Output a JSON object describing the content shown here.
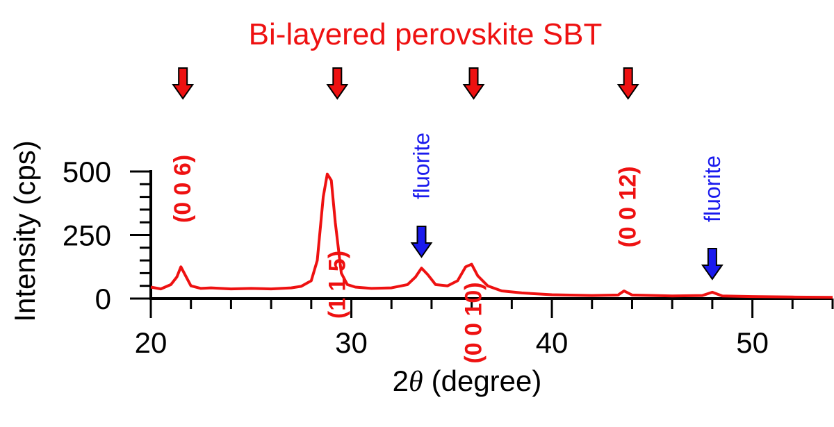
{
  "chart_data": {
    "type": "line",
    "title": "Bi-layered perovskite SBT",
    "xlabel": "(degree)",
    "xlabel_prefix": "2",
    "xlabel_symbol": "θ",
    "ylabel": "Intensity (cps)",
    "xlim": [
      20,
      54
    ],
    "ylim": [
      0,
      500
    ],
    "x_ticks": [
      20,
      30,
      40,
      50
    ],
    "x_minor_step": 2,
    "y_ticks": [
      0,
      250,
      500
    ],
    "y_minor_step": 50,
    "grid": false,
    "series": [
      {
        "color": "#ee1111",
        "x": [
          20,
          20.5,
          21,
          21.3,
          21.5,
          21.7,
          22,
          22.5,
          23,
          24,
          25,
          26,
          27,
          27.5,
          28,
          28.3,
          28.6,
          28.8,
          29.0,
          29.2,
          29.5,
          29.8,
          30.2,
          31,
          32,
          32.8,
          33.2,
          33.5,
          33.8,
          34.2,
          34.8,
          35.3,
          35.7,
          36.0,
          36.3,
          36.8,
          37.5,
          38.5,
          40,
          42,
          43.3,
          43.6,
          44,
          46,
          47.5,
          48,
          48.5,
          50,
          52,
          54
        ],
        "y": [
          45,
          38,
          55,
          85,
          125,
          95,
          50,
          40,
          42,
          38,
          40,
          38,
          42,
          48,
          70,
          150,
          400,
          490,
          465,
          300,
          100,
          55,
          45,
          40,
          42,
          55,
          85,
          120,
          95,
          55,
          50,
          70,
          125,
          135,
          90,
          50,
          30,
          22,
          15,
          12,
          14,
          30,
          14,
          10,
          12,
          25,
          10,
          8,
          6,
          5
        ]
      }
    ],
    "annotations": [
      {
        "id": "a006",
        "text": "(0 0 6)",
        "x": 21.6,
        "phase": "SBT",
        "color": "#ee1111",
        "arrow_color": "#ee1111"
      },
      {
        "id": "a115",
        "text": "(1 1 5)",
        "x": 29.3,
        "phase": "SBT",
        "color": "#ee1111",
        "arrow_color": "#ee1111"
      },
      {
        "id": "a0010",
        "text": "(0 0 10)",
        "x": 36.1,
        "phase": "SBT",
        "color": "#ee1111",
        "arrow_color": "#ee1111"
      },
      {
        "id": "a0012",
        "text": "(0 0 12)",
        "x": 43.8,
        "phase": "SBT",
        "color": "#ee1111",
        "arrow_color": "#ee1111"
      },
      {
        "id": "f1",
        "text": "fluorite",
        "x": 33.5,
        "phase": "fluorite",
        "color": "#1a1aee",
        "arrow_color": "#1a1aee"
      },
      {
        "id": "f2",
        "text": "fluorite",
        "x": 48.0,
        "phase": "fluorite",
        "color": "#1a1aee",
        "arrow_color": "#1a1aee"
      }
    ]
  }
}
